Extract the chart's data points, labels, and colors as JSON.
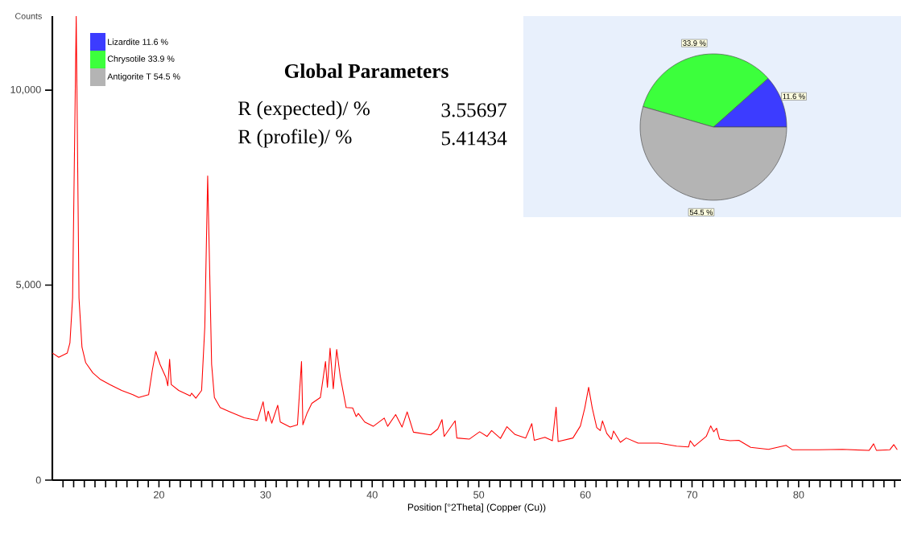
{
  "chart_data": [
    {
      "type": "line",
      "xlabel": "Position [°2Theta] (Copper (Cu))",
      "ylabel": "Counts",
      "color": "#ff0000",
      "x": [
        10,
        10.6,
        11.4,
        11.65,
        11.9,
        12.24,
        12.5,
        12.78,
        13.13,
        13.8,
        14.47,
        15.4,
        16.5,
        17.55,
        18.1,
        19.03,
        19.38,
        19.7,
        20.1,
        20.64,
        20.83,
        21.0,
        21.15,
        21.85,
        22.93,
        23.06,
        23.46,
        24.0,
        24.3,
        24.57,
        24.94,
        25.2,
        25.74,
        26.68,
        28.0,
        29.23,
        29.77,
        30.04,
        30.25,
        30.58,
        31.14,
        31.38,
        32.3,
        32.99,
        33.37,
        33.5,
        33.88,
        34.34,
        35.14,
        35.62,
        35.8,
        36.05,
        36.35,
        36.67,
        37.0,
        37.56,
        38.17,
        38.5,
        38.7,
        39.3,
        40.1,
        41.13,
        41.45,
        42.2,
        42.8,
        43.28,
        43.87,
        45.48,
        46.15,
        46.55,
        46.75,
        47.78,
        47.94,
        49.1,
        50.08,
        50.78,
        51.2,
        52.03,
        52.64,
        53.4,
        54.4,
        54.97,
        55.2,
        56.2,
        56.9,
        57.25,
        57.44,
        58.83,
        59.53,
        59.94,
        60.3,
        60.64,
        61.06,
        61.39,
        61.6,
        62.0,
        62.44,
        62.64,
        63.28,
        63.83,
        64.94,
        66.89,
        68.56,
        69.67,
        69.83,
        70.22,
        71.33,
        71.75,
        72.03,
        72.3,
        72.58,
        73.56,
        74.39,
        75.5,
        77.17,
        78.83,
        79.39,
        81.89,
        84.11,
        86.61,
        87.03,
        87.3,
        88.56,
        88.92,
        89.25
      ],
      "values": [
        3260,
        3150,
        3260,
        3520,
        4670,
        11900,
        4670,
        3410,
        3010,
        2750,
        2590,
        2450,
        2300,
        2190,
        2120,
        2190,
        2820,
        3300,
        2970,
        2640,
        2420,
        3100,
        2450,
        2300,
        2160,
        2230,
        2100,
        2300,
        3930,
        7800,
        2970,
        2120,
        1860,
        1750,
        1600,
        1530,
        2010,
        1510,
        1770,
        1460,
        1920,
        1490,
        1360,
        1420,
        3040,
        1420,
        1710,
        1970,
        2120,
        3040,
        2380,
        3380,
        2340,
        3350,
        2670,
        1860,
        1850,
        1630,
        1710,
        1490,
        1380,
        1590,
        1380,
        1680,
        1360,
        1750,
        1230,
        1160,
        1310,
        1550,
        1120,
        1520,
        1080,
        1050,
        1240,
        1120,
        1270,
        1070,
        1370,
        1170,
        1080,
        1450,
        1020,
        1100,
        1010,
        1870,
        990,
        1080,
        1390,
        1850,
        2380,
        1850,
        1350,
        1270,
        1520,
        1200,
        1050,
        1260,
        970,
        1080,
        950,
        950,
        870,
        850,
        1010,
        870,
        1120,
        1390,
        1240,
        1330,
        1050,
        1010,
        1020,
        840,
        790,
        890,
        780,
        780,
        790,
        760,
        930,
        760,
        780,
        910,
        780
      ],
      "xlim": [
        10,
        89.6
      ],
      "ylim": [
        0,
        11900
      ],
      "xticks": [
        {
          "value": 11,
          "label": null
        },
        {
          "value": 12,
          "label": null
        },
        {
          "value": 13,
          "label": null
        },
        {
          "value": 14,
          "label": null
        },
        {
          "value": 15,
          "label": null
        },
        {
          "value": 16,
          "label": null
        },
        {
          "value": 17,
          "label": null
        },
        {
          "value": 18,
          "label": null
        },
        {
          "value": 19,
          "label": null
        },
        20,
        {
          "value": 21,
          "label": null
        },
        {
          "value": 22,
          "label": null
        },
        {
          "value": 23,
          "label": null
        },
        {
          "value": 24,
          "label": null
        },
        {
          "value": 25,
          "label": null
        },
        {
          "value": 26,
          "label": null
        },
        {
          "value": 27,
          "label": null
        },
        {
          "value": 28,
          "label": null
        },
        {
          "value": 29,
          "label": null
        },
        30,
        {
          "value": 31,
          "label": null
        },
        {
          "value": 32,
          "label": null
        },
        {
          "value": 33,
          "label": null
        },
        {
          "value": 34,
          "label": null
        },
        {
          "value": 35,
          "label": null
        },
        {
          "value": 36,
          "label": null
        },
        {
          "value": 37,
          "label": null
        },
        {
          "value": 38,
          "label": null
        },
        {
          "value": 39,
          "label": null
        },
        40,
        {
          "value": 41,
          "label": null
        },
        {
          "value": 42,
          "label": null
        },
        {
          "value": 43,
          "label": null
        },
        {
          "value": 44,
          "label": null
        },
        {
          "value": 45,
          "label": null
        },
        {
          "value": 46,
          "label": null
        },
        {
          "value": 47,
          "label": null
        },
        {
          "value": 48,
          "label": null
        },
        {
          "value": 49,
          "label": null
        },
        50,
        {
          "value": 51,
          "label": null
        },
        {
          "value": 52,
          "label": null
        },
        {
          "value": 53,
          "label": null
        },
        {
          "value": 54,
          "label": null
        },
        {
          "value": 55,
          "label": null
        },
        {
          "value": 56,
          "label": null
        },
        {
          "value": 57,
          "label": null
        },
        {
          "value": 58,
          "label": null
        },
        {
          "value": 59,
          "label": null
        },
        60,
        {
          "value": 61,
          "label": null
        },
        {
          "value": 62,
          "label": null
        },
        {
          "value": 63,
          "label": null
        },
        {
          "value": 64,
          "label": null
        },
        {
          "value": 65,
          "label": null
        },
        {
          "value": 66,
          "label": null
        },
        {
          "value": 67,
          "label": null
        },
        {
          "value": 68,
          "label": null
        },
        {
          "value": 69,
          "label": null
        },
        70,
        {
          "value": 71,
          "label": null
        },
        {
          "value": 72,
          "label": null
        },
        {
          "value": 73,
          "label": null
        },
        {
          "value": 74,
          "label": null
        },
        {
          "value": 75,
          "label": null
        },
        {
          "value": 76,
          "label": null
        },
        {
          "value": 77,
          "label": null
        },
        {
          "value": 78,
          "label": null
        },
        {
          "value": 79,
          "label": null
        },
        80,
        {
          "value": 81,
          "label": null
        },
        {
          "value": 82,
          "label": null
        },
        {
          "value": 83,
          "label": null
        },
        {
          "value": 84,
          "label": null
        },
        {
          "value": 85,
          "label": null
        },
        {
          "value": 86,
          "label": null
        },
        {
          "value": 87,
          "label": null
        },
        {
          "value": 88,
          "label": null
        },
        {
          "value": 89,
          "label": null
        }
      ],
      "yticks": [
        0,
        {
          "value": 5000,
          "label": "5,000"
        },
        {
          "value": 10000,
          "label": "10,000"
        }
      ],
      "annotations": [
        "Global Parameters",
        "R (expected)/ %",
        "3.55697",
        "R (profile)/ %",
        "5.41434"
      ]
    },
    {
      "type": "pie",
      "categories": [
        "Lizardite 11.6 %",
        "Chrysotile 33.9 %",
        "Antigorite T 54.5 %"
      ],
      "values": [
        11.6,
        33.9,
        54.5
      ],
      "colors": [
        "#3c3cff",
        "#3cff3c",
        "#b4b4b4"
      ],
      "value_labels": [
        "11.6 %",
        "33.9 %",
        "54.5 %"
      ],
      "legend": "top left"
    }
  ]
}
